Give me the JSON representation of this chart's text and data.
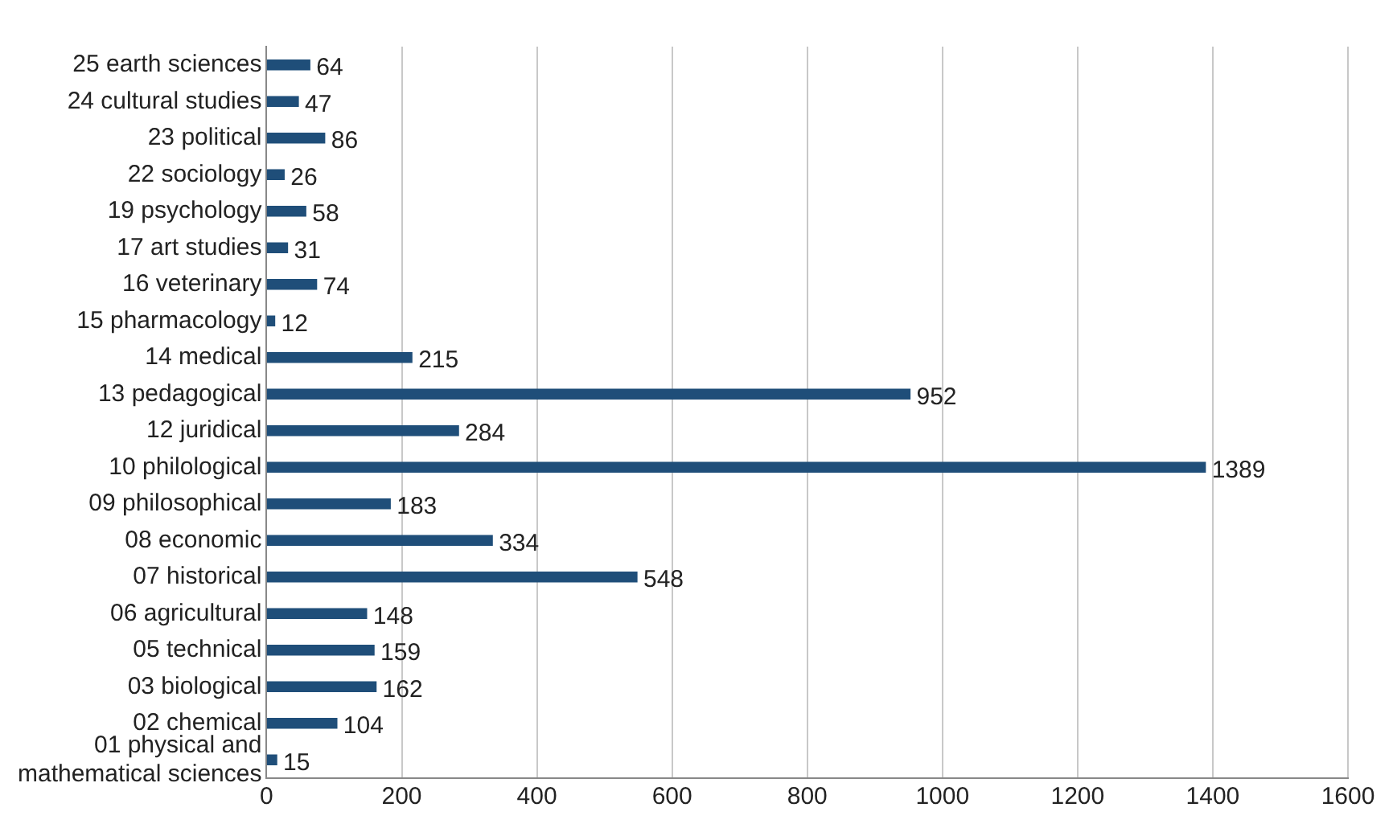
{
  "chart_data": {
    "type": "bar",
    "orientation": "horizontal",
    "categories": [
      "25 earth sciences",
      "24 cultural studies",
      "23 political",
      "22 sociology",
      "19 psychology",
      "17 art studies",
      "16 veterinary",
      "15 pharmacology",
      "14 medical",
      "13 pedagogical",
      "12 juridical",
      "10 philological",
      "09 philosophical",
      "08 economic",
      "07 historical",
      "06 agricultural",
      "05 technical",
      "03 biological",
      "02 chemical",
      "01 physical and mathematical sciences"
    ],
    "values": [
      64,
      47,
      86,
      26,
      58,
      31,
      74,
      12,
      215,
      952,
      284,
      1389,
      183,
      334,
      548,
      148,
      159,
      162,
      104,
      15
    ],
    "color": "#1f4e79",
    "xlim": [
      0,
      1600
    ],
    "xticks": [
      0,
      200,
      400,
      600,
      800,
      1000,
      1200,
      1400,
      1600
    ],
    "grid": "x",
    "data_labels": true,
    "legend": false
  }
}
